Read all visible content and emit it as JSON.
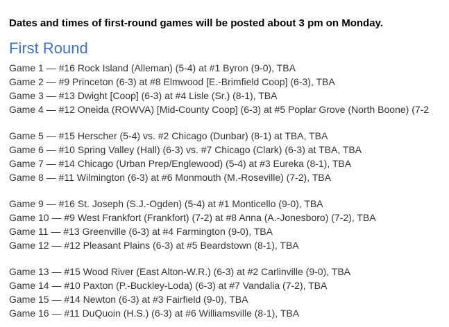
{
  "notice": {
    "text": "Dates and times of first-round games will be posted about 3 pm on Monday."
  },
  "first_round": {
    "heading": "First Round",
    "groups": [
      {
        "games": [
          "Game 1 — #16 Rock Island (Alleman) (5-4) at #1 Byron (9-0), TBA",
          "Game 2 — #9 Princeton (6-3) at #8 Elmwood [E.-Brimfield Coop] (6-3), TBA",
          "Game 3 — #13 Dwight [Coop] (6-3) at #4 Lisle (Sr.) (8-1), TBA",
          "Game 4 — #12 Oneida (ROWVA) [Mid-County Coop] (6-3) at #5 Poplar Grove (North Boone) (7-2"
        ]
      },
      {
        "games": [
          "Game 5 — #15 Herscher (5-4) vs. #2 Chicago (Dunbar) (8-1) at TBA, TBA",
          "Game 6 — #10 Spring Valley (Hall) (6-3) vs. #7 Chicago (Clark) (6-3) at TBA, TBA",
          "Game 7 — #14 Chicago (Urban Prep/Englewood) (5-4) at #3 Eureka (8-1), TBA",
          "Game 8 — #11 Wilmington (6-3) at #6 Monmouth (M.-Roseville) (7-2), TBA"
        ]
      },
      {
        "games": [
          "Game 9 — #16 St. Joseph (S.J.-Ogden) (5-4) at #1 Monticello (9-0), TBA",
          "Game 10 — #9 West Frankfort (Frankfort) (7-2) at #8 Anna (A.-Jonesboro) (7-2), TBA",
          "Game 11 — #13 Greenville (6-3) at #4 Farmington (9-0), TBA",
          "Game 12 — #12 Pleasant Plains (6-3) at #5 Beardstown (8-1), TBA"
        ]
      },
      {
        "games": [
          "Game 13 — #15 Wood River (East Alton-W.R.) (6-3) at #2 Carlinville (9-0), TBA",
          "Game 14 — #10 Paxton (P.-Buckley-Loda) (6-3) at #7 Vandalia (7-2), TBA",
          "Game 15 — #14 Newton (6-3) at #3 Fairfield (9-0), TBA",
          "Game 16 — #11 DuQuoin (H.S.) (6-3) at #6 Williamsville (8-1), TBA"
        ]
      }
    ]
  },
  "colors": {
    "heading_blue": "#4471b8",
    "body_text": "#333333",
    "notice_text": "#000000",
    "background": "#ffffff"
  }
}
